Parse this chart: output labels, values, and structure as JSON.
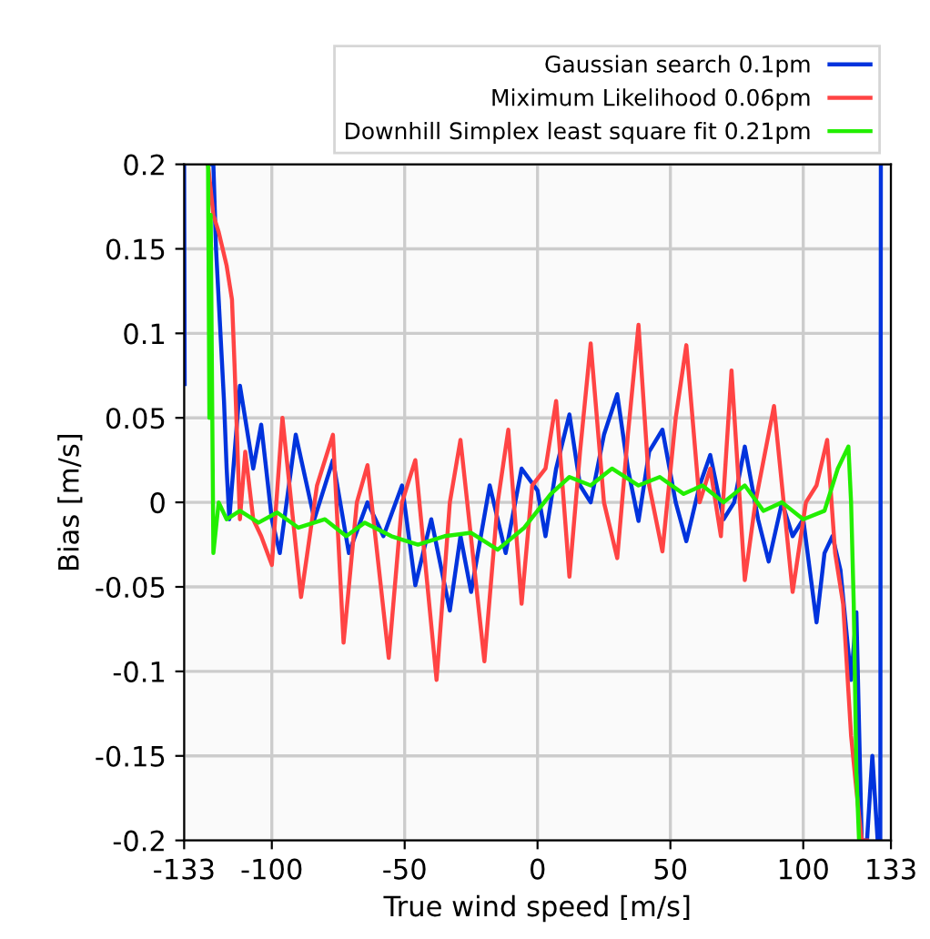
{
  "chart_data": {
    "type": "line",
    "xlabel": "True wind speed [m/s]",
    "ylabel": "Bias [m/s]",
    "xlim": [
      -133,
      133
    ],
    "ylim": [
      -0.2,
      0.2
    ],
    "xticks": [
      -133,
      -100,
      -50,
      0,
      50,
      100,
      133
    ],
    "yticks": [
      -0.2,
      -0.15,
      -0.1,
      -0.05,
      0,
      0.05,
      0.1,
      0.15,
      0.2
    ],
    "grid": true,
    "legend": "top right",
    "marker": "none",
    "line_style": "solid",
    "series": [
      {
        "name": "Gaussian search 0.1pm",
        "color": "#0033dd",
        "x": [
          -133,
          -132.8,
          -130,
          -124,
          -122,
          -121,
          -120,
          -119,
          -118,
          -117,
          -116,
          -112,
          -107,
          -104,
          -100,
          -97,
          -91,
          -84,
          -77,
          -71,
          -64,
          -58,
          -51,
          -46,
          -40,
          -33,
          -29,
          -25,
          -18,
          -12,
          -6,
          0,
          3,
          7,
          12,
          16,
          20,
          25,
          30,
          34,
          38,
          42,
          47,
          52,
          56,
          61,
          65,
          70,
          74,
          78,
          83,
          87,
          92,
          96,
          100,
          105,
          108,
          111,
          114,
          118,
          120,
          122,
          124,
          126,
          128,
          129,
          129.2
        ],
        "values": [
          0.2,
          0.07,
          null,
          0.2,
          0.2,
          0.15,
          0.12,
          0.09,
          0.06,
          0.02,
          -0.01,
          0.069,
          0.02,
          0.046,
          -0.01,
          -0.03,
          0.04,
          -0.01,
          0.025,
          -0.03,
          0.0,
          -0.02,
          0.01,
          -0.049,
          -0.01,
          -0.064,
          -0.02,
          -0.053,
          0.01,
          -0.03,
          0.02,
          0.007,
          -0.02,
          0.02,
          0.052,
          0.01,
          0.0,
          0.04,
          0.064,
          0.02,
          -0.011,
          0.03,
          0.043,
          0.0,
          -0.023,
          0.01,
          0.028,
          -0.01,
          0.0,
          0.033,
          -0.01,
          -0.035,
          0.0,
          -0.02,
          -0.01,
          -0.071,
          -0.03,
          -0.02,
          -0.04,
          -0.105,
          -0.065,
          -0.2,
          -0.2,
          -0.15,
          -0.2,
          -0.2,
          0.2
        ]
      },
      {
        "name": "Miximum Likelihood 0.06pm",
        "color": "#ff4444",
        "x": [
          -124,
          -122,
          -120,
          -117,
          -115,
          -114,
          -112,
          -110,
          -107,
          -104,
          -100,
          -96,
          -89,
          -83,
          -77,
          -73,
          -68,
          -64,
          -56,
          -51,
          -46,
          -38,
          -33,
          -29,
          -20,
          -15,
          -11,
          -6,
          -2,
          3,
          7,
          12,
          16,
          20,
          25,
          30,
          34,
          38,
          42,
          47,
          52,
          56,
          61,
          65,
          69,
          73,
          78,
          82,
          89,
          96,
          101,
          105,
          109,
          112,
          115,
          118,
          120,
          122,
          124
        ],
        "values": [
          0.2,
          0.17,
          0.16,
          0.14,
          0.12,
          0.08,
          -0.01,
          0.03,
          -0.01,
          -0.02,
          -0.037,
          0.05,
          -0.056,
          0.01,
          0.04,
          -0.083,
          0.0,
          0.022,
          -0.092,
          0.0,
          0.025,
          -0.105,
          0.0,
          0.037,
          -0.094,
          0.0,
          0.043,
          -0.06,
          0.01,
          0.02,
          0.06,
          -0.044,
          0.03,
          0.094,
          0.0,
          -0.033,
          0.04,
          0.105,
          0.01,
          -0.029,
          0.05,
          0.093,
          0.0,
          0.02,
          -0.02,
          0.078,
          -0.046,
          0.0,
          0.057,
          -0.053,
          0.0,
          0.01,
          0.037,
          -0.03,
          -0.06,
          -0.138,
          -0.17,
          -0.2,
          -0.2
        ]
      },
      {
        "name": "Downhill Simplex least square fit 0.21pm",
        "color": "#22ee00",
        "x": [
          -124,
          -123.5,
          -123,
          -122,
          -120,
          -117,
          -112,
          -105,
          -98,
          -90,
          -80,
          -72,
          -65,
          -55,
          -45,
          -35,
          -25,
          -15,
          -5,
          0,
          5,
          12,
          20,
          28,
          38,
          46,
          55,
          62,
          70,
          78,
          85,
          92,
          100,
          108,
          113,
          117,
          118,
          119,
          120,
          121
        ],
        "values": [
          0.2,
          0.05,
          0.17,
          -0.03,
          0.0,
          -0.01,
          -0.005,
          -0.012,
          -0.006,
          -0.015,
          -0.01,
          -0.02,
          -0.012,
          -0.02,
          -0.025,
          -0.02,
          -0.018,
          -0.028,
          -0.015,
          -0.005,
          0.005,
          0.015,
          0.01,
          0.02,
          0.01,
          0.015,
          0.005,
          0.01,
          0.0,
          0.01,
          -0.005,
          0.0,
          -0.01,
          -0.005,
          0.02,
          0.033,
          0.0,
          -0.06,
          -0.16,
          -0.2
        ]
      }
    ]
  }
}
